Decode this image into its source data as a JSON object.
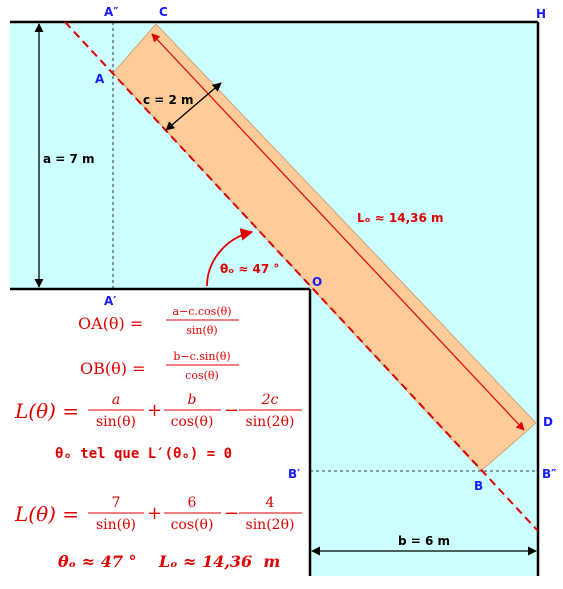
{
  "points": {
    "a_dbl": "A″",
    "c": "C",
    "h": "H",
    "a": "A",
    "a_prime": "A′",
    "o": "O",
    "d": "D",
    "b_prime": "B′",
    "b": "B",
    "b_dbl": "B″"
  },
  "dims": {
    "c": "c = 2 m",
    "a": "a = 7 m",
    "l0": "Lₒ ≈ 14,36  m",
    "theta": "θₒ ≈ 47 °",
    "b": "b = 6 m"
  },
  "formulas": {
    "oa": {
      "lhs": "OA(θ) =",
      "num": "a−c.cos(θ)",
      "den": "sin(θ)"
    },
    "ob": {
      "lhs": "OB(θ) =",
      "num": "b−c.sin(θ)",
      "den": "cos(θ)"
    },
    "l_general": {
      "lhs": "L(θ) =",
      "t1n": "a",
      "t1d": "sin(θ)",
      "op1": "+",
      "t2n": "b",
      "t2d": "cos(θ)",
      "op2": "−",
      "t3n": "2c",
      "t3d": "sin(2θ)"
    },
    "condition": "θₒ tel que L′(θₒ) = 0",
    "l_numeric": {
      "lhs": "L(θ) =",
      "t1n": "7",
      "t1d": "sin(θ)",
      "op1": "+",
      "t2n": "6",
      "t2d": "cos(θ)",
      "op2": "−",
      "t3n": "4",
      "t3d": "sin(2θ)"
    },
    "result": "θₒ ≈ 47 °    Lₒ ≈ 14,36  m"
  },
  "colors": {
    "water": "#ccffff",
    "plank": "#ffcc99",
    "accent": "#e00000",
    "point_label": "#1a1aff"
  }
}
